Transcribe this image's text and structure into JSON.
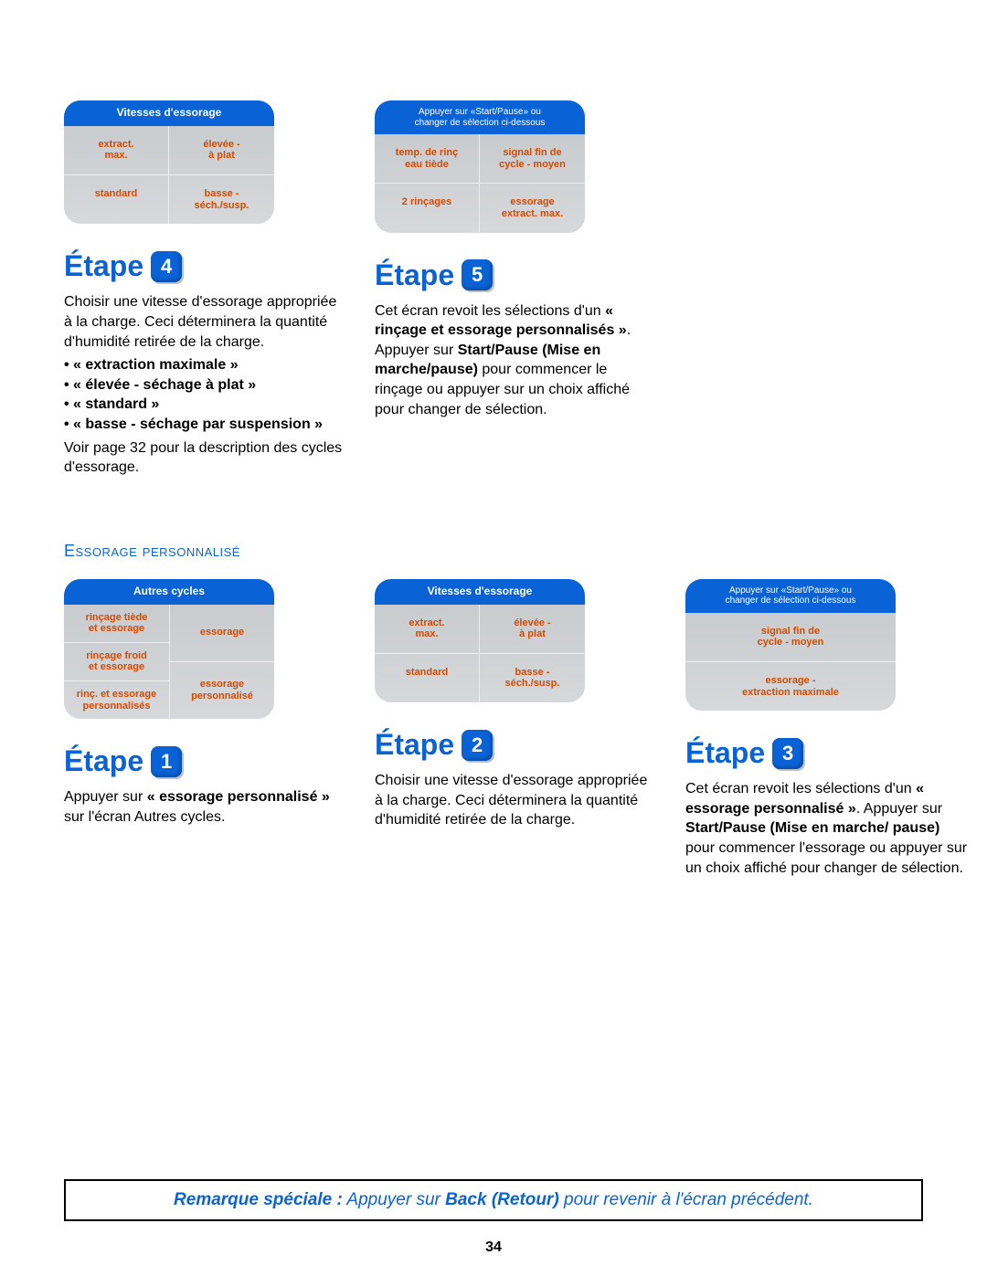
{
  "colors": {
    "brand_blue": "#0a63d6",
    "panel_header_bg": "#0a63d6",
    "panel_header_text": "#ffffff",
    "panel_body_bg_top": "#c9cccf",
    "panel_body_bg_bottom": "#d6d8da",
    "panel_cell_text": "#d64a00",
    "body_text": "#000000",
    "note_border": "#000000"
  },
  "top": {
    "etape4": {
      "panel": {
        "header": "Vitesses d'essorage",
        "cells": [
          "extract.\nmax.",
          "élevée -\nà plat",
          "standard",
          "basse -\nséch./susp."
        ]
      },
      "step_word": "Étape",
      "step_num": "4",
      "para1": "Choisir une vitesse d'essorage appropriée à la charge. Ceci déterminera la quantité d'humidité retirée de la charge.",
      "bullets": [
        "« extraction maximale »",
        "« élevée - séchage à plat »",
        "« standard »",
        "« basse - séchage par suspension »"
      ],
      "para2": "Voir page 32 pour la description des cycles d'essorage."
    },
    "etape5": {
      "panel": {
        "header": "Appuyer sur «Start/Pause» ou\nchanger de sélection ci-dessous",
        "cells": [
          "temp. de rinç\neau tiède",
          "signal fin de\ncycle - moyen",
          "2 rinçages",
          "essorage\nextract. max."
        ]
      },
      "step_word": "Étape",
      "step_num": "5",
      "para_before": "Cet écran revoit les sélections d'un ",
      "bold1": "« rinçage et essorage personnalisés »",
      "mid1": ". Appuyer sur ",
      "bold2": "Start/Pause (Mise en marche/pause)",
      "after": " pour commencer le rinçage ou appuyer sur un choix affiché pour changer de sélection."
    }
  },
  "section_title": "Essorage personnalisé",
  "bottom": {
    "etape1": {
      "panel": {
        "header": "Autres cycles",
        "left_cells": [
          "rinçage tiède\net essorage",
          "rinçage froid\net essorage",
          "rinç. et essorage\npersonnalisés"
        ],
        "right_cells": [
          "essorage",
          "essorage\npersonnalisé"
        ]
      },
      "step_word": "Étape",
      "step_num": "1",
      "t1": "Appuyer sur ",
      "b1": "« essorage personnalisé »",
      "t2": " sur l'écran Autres cycles."
    },
    "etape2": {
      "panel": {
        "header": "Vitesses d'essorage",
        "cells": [
          "extract.\nmax.",
          "élevée -\nà plat",
          "standard",
          "basse -\nséch./susp."
        ]
      },
      "step_word": "Étape",
      "step_num": "2",
      "para": "Choisir une vitesse d'essorage appropriée à la charge. Ceci déterminera la quantité d'humidité retirée de la charge."
    },
    "etape3": {
      "panel": {
        "header": "Appuyer sur «Start/Pause» ou\nchanger de sélection ci-dessous",
        "cells": [
          "signal fin de\ncycle - moyen",
          "essorage -\nextraction maximale"
        ]
      },
      "step_word": "Étape",
      "step_num": "3",
      "t1": "Cet écran revoit les sélections d'un ",
      "b1": "« essorage personnalisé »",
      "t2": ". Appuyer sur ",
      "b2": "Start/Pause (Mise en marche/ pause)",
      "t3": " pour commencer l'essorage ou appuyer sur un choix affiché pour changer de sélection."
    }
  },
  "note": {
    "b1": "Remarque spéciale :",
    "t1": " Appuyer sur ",
    "b2": "Back (Retour)",
    "t2": " pour revenir à l'écran précédent."
  },
  "page_number": "34"
}
